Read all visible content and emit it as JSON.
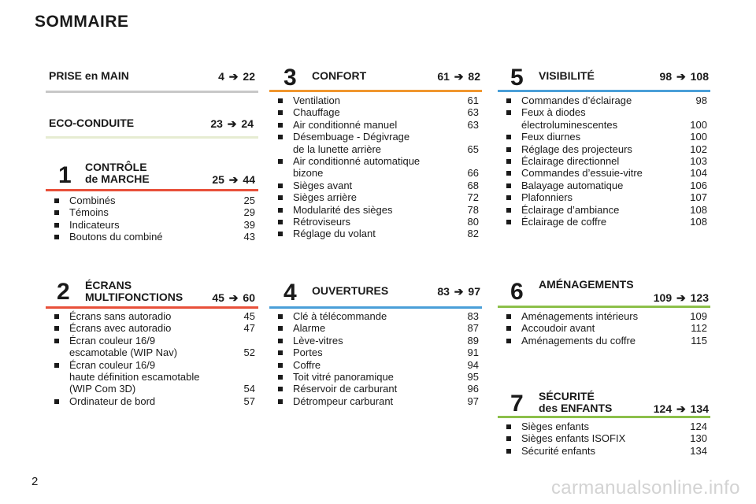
{
  "title": "SOMMAIRE",
  "page_number": "2",
  "watermark": "carmanualsonline.info",
  "colors": {
    "prise": "#c8c8c8",
    "eco": "#e6ecd2",
    "controle": "#e8503a",
    "confort": "#f0962e",
    "visibilite": "#4a9fd8",
    "ecrans": "#e8503a",
    "ouvertures": "#4a9fd8",
    "amenagements": "#8cc04a",
    "securite": "#8cc04a"
  },
  "prise": {
    "name": "PRISE en MAIN",
    "from": "4",
    "to": "22"
  },
  "eco": {
    "name": "ECO-CONDUITE",
    "from": "23",
    "to": "24"
  },
  "controle": {
    "num": "1",
    "line1": "CONTRÔLE",
    "line2": "de MARCHE",
    "from": "25",
    "to": "44",
    "items": [
      {
        "label": "Combinés",
        "page": "25"
      },
      {
        "label": "Témoins",
        "page": "29"
      },
      {
        "label": "Indicateurs",
        "page": "39"
      },
      {
        "label": "Boutons du combiné",
        "page": "43"
      }
    ]
  },
  "ecrans": {
    "num": "2",
    "line1": "ÉCRANS",
    "line2": "MULTIFONCTIONS",
    "from": "45",
    "to": "60",
    "items": [
      {
        "label": "Écrans sans autoradio",
        "page": "45"
      },
      {
        "label": "Écrans avec autoradio",
        "page": "47"
      },
      {
        "label": "Écran couleur 16/9",
        "label2": "escamotable (WIP Nav)",
        "page": "52"
      },
      {
        "label": "Écran couleur 16/9",
        "label2": "haute définition escamotable",
        "label3": "(WIP Com 3D)",
        "page": "54"
      },
      {
        "label": "Ordinateur de bord",
        "page": "57"
      }
    ]
  },
  "confort": {
    "num": "3",
    "name": "CONFORT",
    "from": "61",
    "to": "82",
    "items": [
      {
        "label": "Ventilation",
        "page": "61"
      },
      {
        "label": "Chauffage",
        "page": "63"
      },
      {
        "label": "Air conditionné manuel",
        "page": "63"
      },
      {
        "label": "Désembuage - Dégivrage",
        "label2": "de la lunette arrière",
        "page": "65"
      },
      {
        "label": "Air conditionné automatique",
        "label2": "bizone",
        "page": "66"
      },
      {
        "label": "Sièges avant",
        "page": "68"
      },
      {
        "label": "Sièges arrière",
        "page": "72"
      },
      {
        "label": "Modularité des sièges",
        "page": "78"
      },
      {
        "label": "Rétroviseurs",
        "page": "80"
      },
      {
        "label": "Réglage du volant",
        "page": "82"
      }
    ]
  },
  "ouvertures": {
    "num": "4",
    "name": "OUVERTURES",
    "from": "83",
    "to": "97",
    "items": [
      {
        "label": "Clé à télécommande",
        "page": "83"
      },
      {
        "label": "Alarme",
        "page": "87"
      },
      {
        "label": "Lève-vitres",
        "page": "89"
      },
      {
        "label": "Portes",
        "page": "91"
      },
      {
        "label": "Coffre",
        "page": "94"
      },
      {
        "label": "Toit vitré panoramique",
        "page": "95"
      },
      {
        "label": "Réservoir de carburant",
        "page": "96"
      },
      {
        "label": "Détrompeur carburant",
        "page": "97"
      }
    ]
  },
  "visibilite": {
    "num": "5",
    "name": "VISIBILITÉ",
    "from": "98",
    "to": "108",
    "items": [
      {
        "label": "Commandes d’éclairage",
        "page": "98"
      },
      {
        "label": "Feux à diodes",
        "label2": "électroluminescentes",
        "page": "100"
      },
      {
        "label": "Feux diurnes",
        "page": "100"
      },
      {
        "label": "Réglage des projecteurs",
        "page": "102"
      },
      {
        "label": "Éclairage directionnel",
        "page": "103"
      },
      {
        "label": "Commandes d’essuie-vitre",
        "page": "104"
      },
      {
        "label": "Balayage automatique",
        "page": "106"
      },
      {
        "label": "Plafonniers",
        "page": "107"
      },
      {
        "label": "Éclairage d’ambiance",
        "page": "108"
      },
      {
        "label": "Éclairage de coffre",
        "page": "108"
      }
    ]
  },
  "amenagements": {
    "num": "6",
    "name": "AMÉNAGEMENTS",
    "from": "109",
    "to": "123",
    "items": [
      {
        "label": "Aménagements intérieurs",
        "page": "109"
      },
      {
        "label": "Accoudoir avant",
        "page": "112"
      },
      {
        "label": "Aménagements du coffre",
        "page": "115"
      }
    ]
  },
  "securite": {
    "num": "7",
    "line1": "SÉCURITÉ",
    "line2": "des ENFANTS",
    "from": "124",
    "to": "134",
    "items": [
      {
        "label": "Sièges enfants",
        "page": "124"
      },
      {
        "label": "Sièges enfants ISOFIX",
        "page": "130"
      },
      {
        "label": "Sécurité enfants",
        "page": "134"
      }
    ]
  }
}
